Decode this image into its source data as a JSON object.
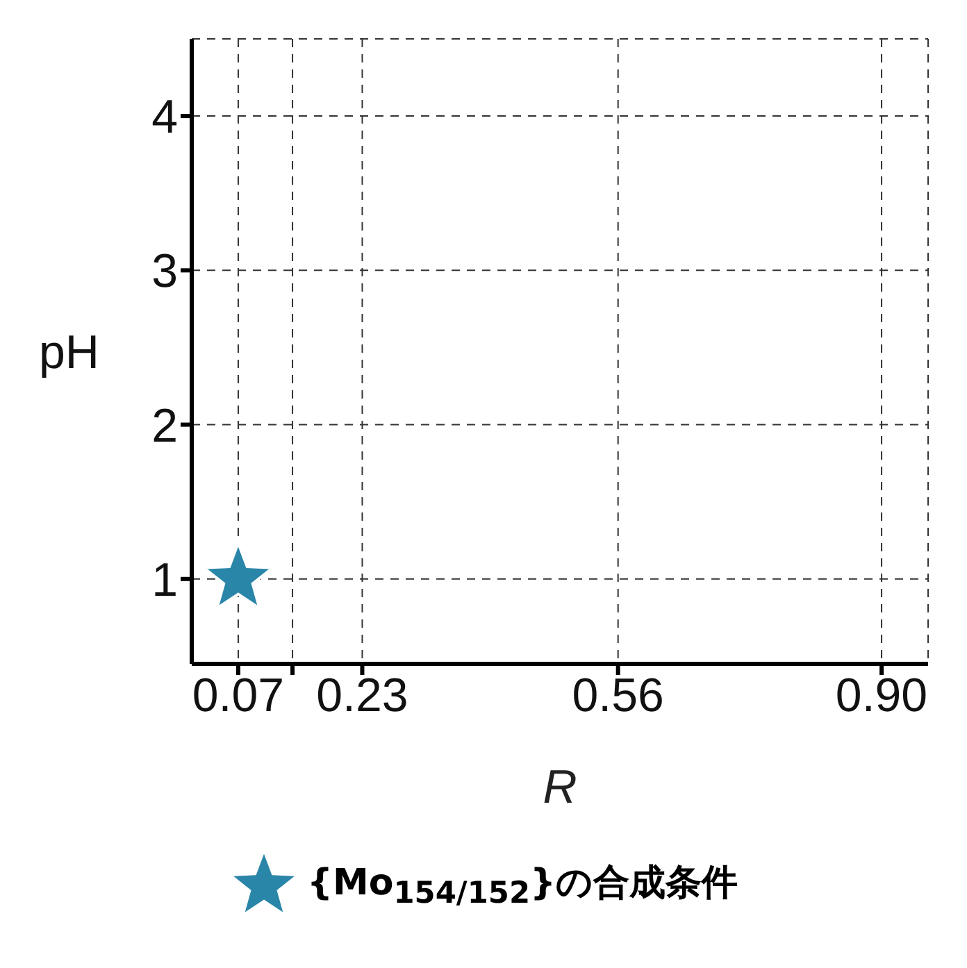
{
  "chart_data": {
    "type": "scatter",
    "xlabel": "R",
    "ylabel": "pH",
    "x": [
      0.07
    ],
    "series": [
      {
        "name": "{Mo$_{154/152}$}の合成条件",
        "color": "#2a86a8",
        "values": [
          1
        ]
      }
    ],
    "xlim": [
      0.01,
      0.96
    ],
    "xticks": [
      {
        "value": 0.07,
        "label": "0.07"
      },
      {
        "value": 0.14,
        "label": null
      },
      {
        "value": 0.23,
        "label": "0.23"
      },
      {
        "value": 0.56,
        "label": "0.56"
      },
      {
        "value": 0.9,
        "label": "0.90"
      }
    ],
    "ylim": [
      0.45,
      4.5
    ],
    "yticks": [
      1,
      2,
      3,
      4
    ],
    "grid": true,
    "legend": "bottom",
    "marker": "star"
  }
}
